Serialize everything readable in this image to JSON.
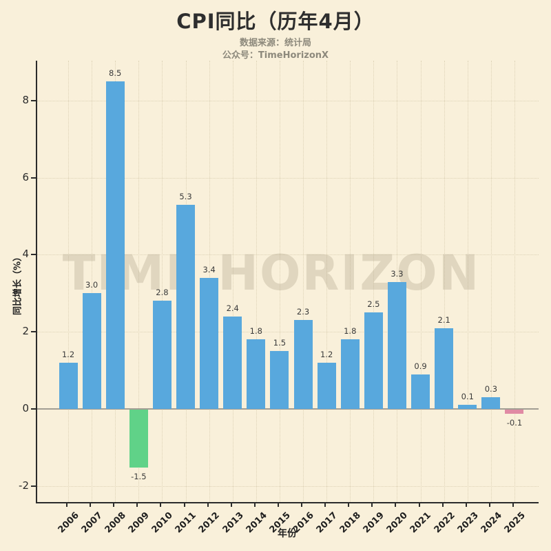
{
  "colors": {
    "background": "#f9f0da",
    "bar_positive": "#58a8dd",
    "bar_negative_2009": "#60d288",
    "bar_negative_2025": "#e08aa4",
    "axis": "#2b2b2b",
    "zero_line": "#a29e93",
    "grid": "#ddd2b6",
    "title_text": "#2e2e2e",
    "subtitle_text": "#8d897c",
    "value_label_text": "#3a3a3a"
  },
  "chart_data": {
    "type": "bar",
    "title": "CPI同比（历年4月）",
    "source_note": "数据来源：统计局",
    "account_note": "公众号：TimeHorizonX",
    "xlabel": "年份",
    "ylabel": "同比增长（%）",
    "watermark": "TIME HORIZON",
    "categories": [
      "2006",
      "2007",
      "2008",
      "2009",
      "2010",
      "2011",
      "2012",
      "2013",
      "2014",
      "2015",
      "2016",
      "2017",
      "2018",
      "2019",
      "2020",
      "2021",
      "2022",
      "2023",
      "2024",
      "2025"
    ],
    "values": [
      1.2,
      3.0,
      8.5,
      -1.5,
      2.8,
      5.3,
      3.4,
      2.4,
      1.8,
      1.5,
      2.3,
      1.2,
      1.8,
      2.5,
      3.3,
      0.9,
      2.1,
      0.1,
      0.3,
      -0.1
    ],
    "bar_labels": [
      "1.2",
      "3.0",
      "8.5",
      "-1.5",
      "2.8",
      "5.3",
      "3.4",
      "2.4",
      "1.8",
      "1.5",
      "2.3",
      "1.2",
      "1.8",
      "2.5",
      "3.3",
      "0.9",
      "2.1",
      "0.1",
      "0.3",
      "-0.1"
    ],
    "bar_colors": [
      "#58a8dd",
      "#58a8dd",
      "#58a8dd",
      "#60d288",
      "#58a8dd",
      "#58a8dd",
      "#58a8dd",
      "#58a8dd",
      "#58a8dd",
      "#58a8dd",
      "#58a8dd",
      "#58a8dd",
      "#58a8dd",
      "#58a8dd",
      "#58a8dd",
      "#58a8dd",
      "#58a8dd",
      "#58a8dd",
      "#58a8dd",
      "#e08aa4"
    ],
    "yticks": [
      8,
      6,
      4,
      2,
      0,
      -2
    ],
    "ylim": [
      -2.45,
      9.02
    ],
    "grid": true,
    "legend_position": "none"
  }
}
